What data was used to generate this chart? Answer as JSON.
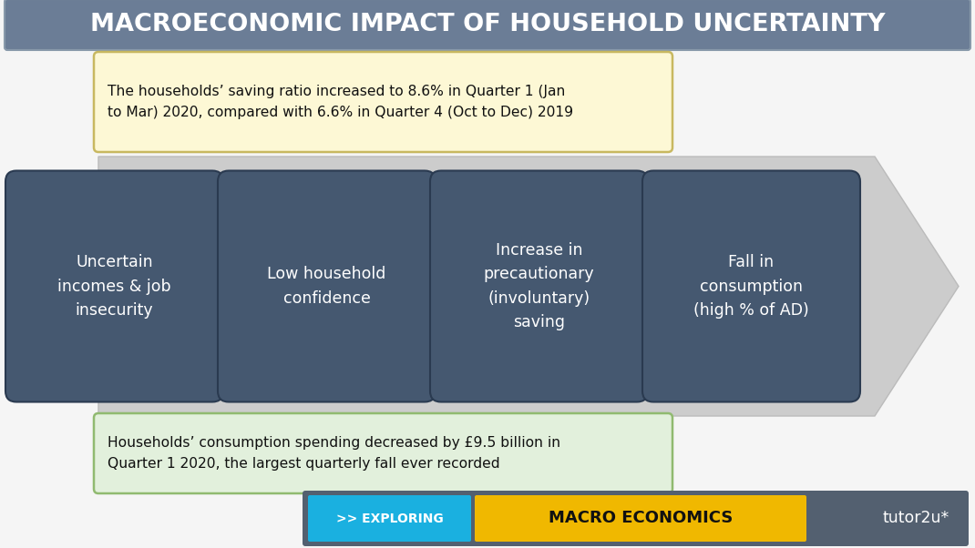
{
  "title": "MACROECONOMIC IMPACT OF HOUSEHOLD UNCERTAINTY",
  "title_bg": "#6b7d96",
  "title_text_color": "#ffffff",
  "bg_color": "#f5f5f5",
  "top_note": "The households’ saving ratio increased to 8.6% in Quarter 1 (Jan\nto Mar) 2020, compared with 6.6% in Quarter 4 (Oct to Dec) 2019",
  "top_note_bg": "#fdf8d5",
  "top_note_border": "#c8b860",
  "bottom_note": "Households’ consumption spending decreased by £9.5 billion in\nQuarter 1 2020, the largest quarterly fall ever recorded",
  "bottom_note_bg": "#e2f0dc",
  "bottom_note_border": "#90ba70",
  "arrow_color": "#cccccc",
  "arrow_edge": "#bbbbbb",
  "box_color": "#455870",
  "box_text_color": "#ffffff",
  "boxes": [
    "Uncertain\nincomes & job\ninsecurity",
    "Low household\nconfidence",
    "Increase in\nprecautionary\n(involuntary)\nsaving",
    "Fall in\nconsumption\n(high % of AD)"
  ],
  "footer_bg": "#536070",
  "footer_blue": "#1ab0e0",
  "footer_yellow": "#f0b800",
  "footer_text1": ">> EXPLORING",
  "footer_text2": "MACRO ECONOMICS",
  "footer_text3": "tutor2u*"
}
